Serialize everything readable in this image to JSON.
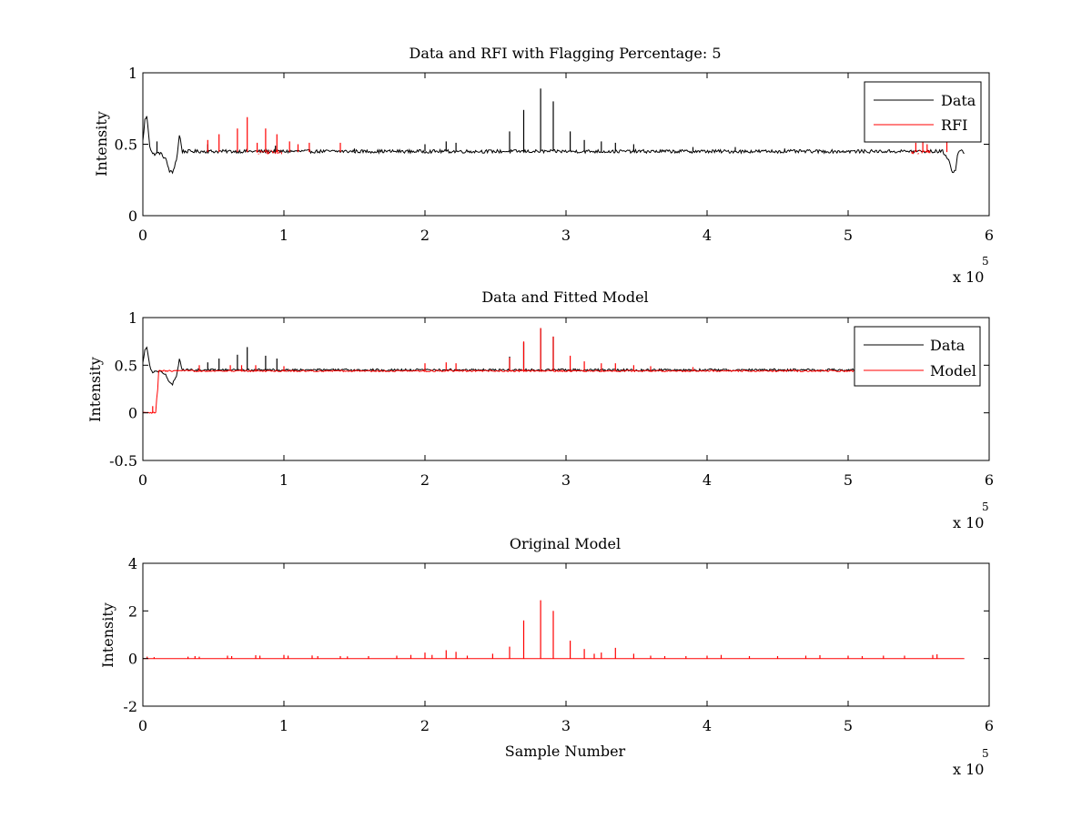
{
  "chart_data": [
    {
      "id": "panel1",
      "type": "line",
      "title": "Data and RFI with Flagging Percentage: 5",
      "xlabel": "",
      "ylabel": "Intensity",
      "xlim": [
        0,
        600000
      ],
      "ylim": [
        0,
        1
      ],
      "xticks": [
        0,
        100000,
        200000,
        300000,
        400000,
        500000,
        600000
      ],
      "xtick_labels": [
        "0",
        "1",
        "2",
        "3",
        "4",
        "5",
        "6"
      ],
      "yticks": [
        0,
        0.5,
        1
      ],
      "ytick_labels": [
        "0",
        "0.5",
        "1"
      ],
      "x_multiplier": {
        "text": "x 10",
        "exponent": "5"
      },
      "legend": {
        "placement": "top-right",
        "entries": [
          "Data",
          "RFI"
        ]
      },
      "series": [
        {
          "name": "Data",
          "color": "#000000",
          "baseline": 0.445,
          "noise": 0.012,
          "x_max": 583000,
          "features": [
            {
              "x": 0,
              "y": 0.52
            },
            {
              "x": 1500,
              "y": 0.68
            },
            {
              "x": 3000,
              "y": 0.69
            },
            {
              "x": 5000,
              "y": 0.48
            },
            {
              "x": 7000,
              "y": 0.43
            },
            {
              "x": 12000,
              "y": 0.44
            },
            {
              "x": 16000,
              "y": 0.4
            },
            {
              "x": 19000,
              "y": 0.31
            },
            {
              "x": 21000,
              "y": 0.3
            },
            {
              "x": 24000,
              "y": 0.4
            },
            {
              "x": 26000,
              "y": 0.57
            },
            {
              "x": 28000,
              "y": 0.45
            },
            {
              "x": 567000,
              "y": 0.45
            },
            {
              "x": 571000,
              "y": 0.4
            },
            {
              "x": 574000,
              "y": 0.3
            },
            {
              "x": 576000,
              "y": 0.31
            },
            {
              "x": 578000,
              "y": 0.45
            },
            {
              "x": 580000,
              "y": 0.47
            },
            {
              "x": 583000,
              "y": 0.43
            }
          ],
          "spikes": [
            [
              10000,
              0.52
            ],
            [
              46000,
              0.5
            ],
            [
              94000,
              0.49
            ],
            [
              150000,
              0.47
            ],
            [
              200000,
              0.5
            ],
            [
              215000,
              0.52
            ],
            [
              222000,
              0.51
            ],
            [
              260000,
              0.59
            ],
            [
              270000,
              0.74
            ],
            [
              282000,
              0.89
            ],
            [
              291000,
              0.8
            ],
            [
              303000,
              0.59
            ],
            [
              313000,
              0.53
            ],
            [
              325000,
              0.52
            ],
            [
              335000,
              0.51
            ],
            [
              348000,
              0.5
            ],
            [
              390000,
              0.48
            ],
            [
              420000,
              0.48
            ],
            [
              455000,
              0.47
            ]
          ]
        },
        {
          "name": "RFI",
          "color": "#ff0000",
          "spikes": [
            [
              46000,
              0.53
            ],
            [
              54000,
              0.57
            ],
            [
              67000,
              0.61
            ],
            [
              74000,
              0.69
            ],
            [
              81000,
              0.51
            ],
            [
              87000,
              0.61
            ],
            [
              95000,
              0.57
            ],
            [
              104000,
              0.52
            ],
            [
              110000,
              0.5
            ],
            [
              118000,
              0.51
            ],
            [
              140000,
              0.51
            ],
            [
              548000,
              0.51
            ],
            [
              553000,
              0.53
            ],
            [
              556000,
              0.5
            ],
            [
              570000,
              0.52
            ]
          ],
          "bands": [
            [
              80000,
              98000
            ],
            [
              545000,
              558000
            ]
          ]
        }
      ]
    },
    {
      "id": "panel2",
      "type": "line",
      "title": "Data and Fitted Model",
      "xlabel": "",
      "ylabel": "Intensity",
      "xlim": [
        0,
        600000
      ],
      "ylim": [
        -0.5,
        1
      ],
      "xticks": [
        0,
        100000,
        200000,
        300000,
        400000,
        500000,
        600000
      ],
      "xtick_labels": [
        "0",
        "1",
        "2",
        "3",
        "4",
        "5",
        "6"
      ],
      "yticks": [
        -0.5,
        0,
        0.5,
        1
      ],
      "ytick_labels": [
        "-0.5",
        "0",
        "0.5",
        "1"
      ],
      "x_multiplier": {
        "text": "x 10",
        "exponent": "5"
      },
      "legend": {
        "placement": "top-right",
        "entries": [
          "Data",
          "Model"
        ]
      },
      "series": [
        {
          "name": "Data",
          "color": "#000000",
          "baseline": 0.445,
          "noise": 0.012,
          "x_max": 583000,
          "features": [
            {
              "x": 0,
              "y": 0.52
            },
            {
              "x": 1500,
              "y": 0.68
            },
            {
              "x": 3000,
              "y": 0.69
            },
            {
              "x": 5000,
              "y": 0.48
            },
            {
              "x": 7000,
              "y": 0.43
            },
            {
              "x": 12000,
              "y": 0.44
            },
            {
              "x": 16000,
              "y": 0.4
            },
            {
              "x": 19000,
              "y": 0.31
            },
            {
              "x": 21000,
              "y": 0.3
            },
            {
              "x": 24000,
              "y": 0.4
            },
            {
              "x": 26000,
              "y": 0.57
            },
            {
              "x": 28000,
              "y": 0.45
            },
            {
              "x": 583000,
              "y": 0.45
            }
          ],
          "spikes": [
            [
              46000,
              0.53
            ],
            [
              54000,
              0.57
            ],
            [
              67000,
              0.61
            ],
            [
              74000,
              0.69
            ],
            [
              87000,
              0.6
            ],
            [
              95000,
              0.57
            ],
            [
              260000,
              0.59
            ],
            [
              270000,
              0.74
            ],
            [
              282000,
              0.89
            ],
            [
              291000,
              0.8
            ]
          ]
        },
        {
          "name": "Model",
          "color": "#ff0000",
          "baseline": 0.445,
          "noise": 0.008,
          "x_max": 583000,
          "features": [
            {
              "x": 0,
              "y": 0.0
            },
            {
              "x": 9500,
              "y": 0.0
            },
            {
              "x": 10000,
              "y": 0.25
            },
            {
              "x": 10500,
              "y": 0.25
            },
            {
              "x": 11000,
              "y": 0.44
            },
            {
              "x": 583000,
              "y": 0.44
            }
          ],
          "spikes": [
            [
              7000,
              0.07
            ],
            [
              40000,
              0.5
            ],
            [
              62000,
              0.5
            ],
            [
              70000,
              0.5
            ],
            [
              80000,
              0.5
            ],
            [
              100000,
              0.49
            ],
            [
              200000,
              0.52
            ],
            [
              215000,
              0.53
            ],
            [
              222000,
              0.52
            ],
            [
              260000,
              0.58
            ],
            [
              270000,
              0.75
            ],
            [
              282000,
              0.89
            ],
            [
              291000,
              0.8
            ],
            [
              303000,
              0.6
            ],
            [
              313000,
              0.54
            ],
            [
              325000,
              0.52
            ],
            [
              335000,
              0.52
            ],
            [
              348000,
              0.5
            ],
            [
              360000,
              0.49
            ],
            [
              390000,
              0.48
            ]
          ]
        }
      ]
    },
    {
      "id": "panel3",
      "type": "line",
      "title": "Original Model",
      "xlabel": "Sample Number",
      "ylabel": "Intensity",
      "xlim": [
        0,
        600000
      ],
      "ylim": [
        -2,
        4
      ],
      "xticks": [
        0,
        100000,
        200000,
        300000,
        400000,
        500000,
        600000
      ],
      "xtick_labels": [
        "0",
        "1",
        "2",
        "3",
        "4",
        "5",
        "6"
      ],
      "yticks": [
        -2,
        0,
        2,
        4
      ],
      "ytick_labels": [
        "-2",
        "0",
        "2",
        "4"
      ],
      "x_multiplier": {
        "text": "x 10",
        "exponent": "5"
      },
      "legend": null,
      "series": [
        {
          "name": "",
          "color": "#ff0000",
          "baseline": 0.0,
          "noise": 0.0,
          "x_max": 583000,
          "features": [
            {
              "x": 0,
              "y": 0.0
            },
            {
              "x": 583000,
              "y": 0.0
            }
          ],
          "spikes": [
            [
              3000,
              0.08
            ],
            [
              8000,
              0.06
            ],
            [
              32000,
              0.08
            ],
            [
              37000,
              0.1
            ],
            [
              40000,
              0.08
            ],
            [
              60000,
              0.12
            ],
            [
              63000,
              0.1
            ],
            [
              80000,
              0.14
            ],
            [
              83000,
              0.12
            ],
            [
              100000,
              0.15
            ],
            [
              103000,
              0.12
            ],
            [
              120000,
              0.13
            ],
            [
              124000,
              0.1
            ],
            [
              140000,
              0.1
            ],
            [
              145000,
              0.09
            ],
            [
              160000,
              0.1
            ],
            [
              180000,
              0.12
            ],
            [
              190000,
              0.15
            ],
            [
              200000,
              0.25
            ],
            [
              205000,
              0.15
            ],
            [
              215000,
              0.35
            ],
            [
              222000,
              0.28
            ],
            [
              230000,
              0.12
            ],
            [
              248000,
              0.2
            ],
            [
              260000,
              0.5
            ],
            [
              270000,
              1.6
            ],
            [
              282000,
              2.45
            ],
            [
              291000,
              2.0
            ],
            [
              303000,
              0.75
            ],
            [
              313000,
              0.4
            ],
            [
              320000,
              0.2
            ],
            [
              325000,
              0.25
            ],
            [
              335000,
              0.45
            ],
            [
              348000,
              0.2
            ],
            [
              360000,
              0.12
            ],
            [
              370000,
              0.1
            ],
            [
              385000,
              0.1
            ],
            [
              400000,
              0.12
            ],
            [
              410000,
              0.15
            ],
            [
              430000,
              0.1
            ],
            [
              450000,
              0.1
            ],
            [
              470000,
              0.12
            ],
            [
              480000,
              0.14
            ],
            [
              500000,
              0.12
            ],
            [
              510000,
              0.1
            ],
            [
              525000,
              0.12
            ],
            [
              540000,
              0.12
            ],
            [
              560000,
              0.15
            ],
            [
              563000,
              0.18
            ]
          ]
        }
      ]
    }
  ]
}
